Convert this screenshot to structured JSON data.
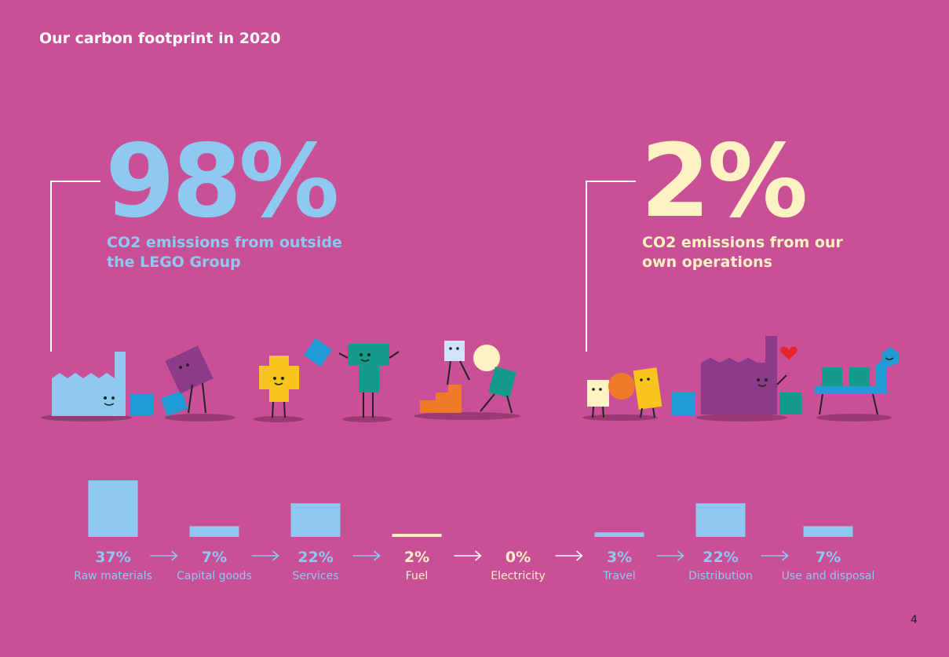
{
  "header": {
    "title": "Our carbon footprint in 2020"
  },
  "outside": {
    "value": "98%",
    "label_line1": "CO2 emissions from outside",
    "label_line2": "the LEGO Group"
  },
  "own": {
    "value": "2%",
    "label_line1": "CO2 emissions from our",
    "label_line2": "own operations"
  },
  "colors": {
    "background": "#c94f97",
    "outside": "#8ec9f0",
    "own": "#fdf3c2",
    "arrow": "#8ec9f0"
  },
  "chart_data": {
    "type": "bar",
    "categories": [
      "Raw materials",
      "Capital goods",
      "Services",
      "Fuel",
      "Electricity",
      "Travel",
      "Distribution",
      "Use and disposal"
    ],
    "values": [
      37,
      7,
      22,
      2,
      0,
      3,
      22,
      7
    ],
    "value_labels": [
      "37%",
      "7%",
      "22%",
      "2%",
      "0%",
      "3%",
      "22%",
      "7%"
    ],
    "groups": [
      "outside",
      "outside",
      "outside",
      "own",
      "own",
      "outside",
      "outside",
      "outside"
    ],
    "ylim": [
      0,
      37
    ]
  },
  "page": {
    "number": "4"
  }
}
